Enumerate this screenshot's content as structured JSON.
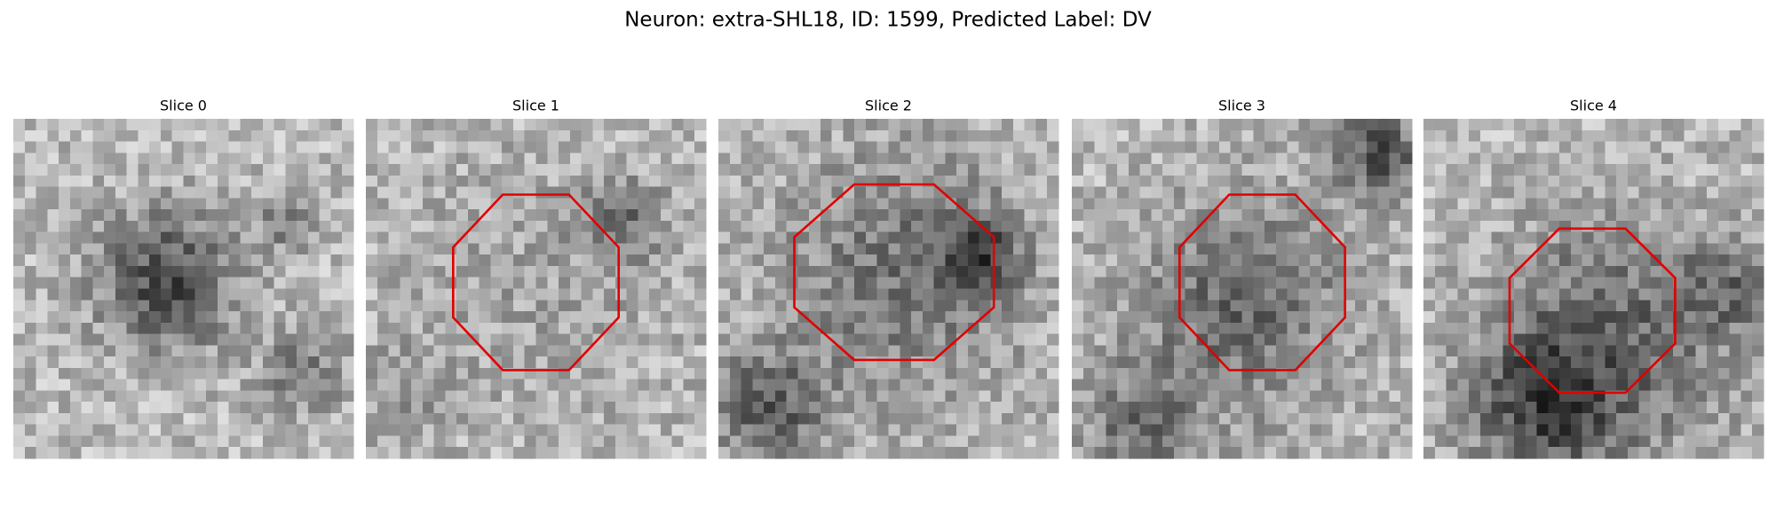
{
  "title": "Neuron: extra-SHL18, ID: 1599, Predicted Label: DV",
  "panels": [
    {
      "title": "Slice 0"
    },
    {
      "title": "Slice 1"
    },
    {
      "title": "Slice 2"
    },
    {
      "title": "Slice 3"
    },
    {
      "title": "Slice 4"
    }
  ]
}
